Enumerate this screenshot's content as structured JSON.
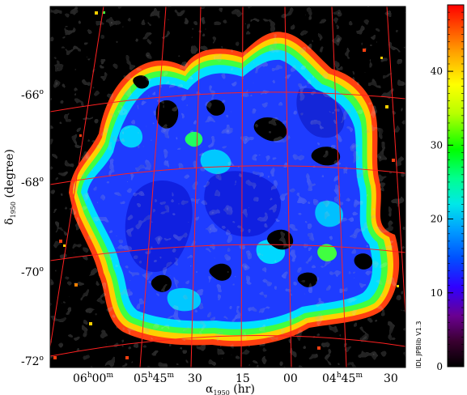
{
  "chart_data": {
    "type": "heatmap",
    "title": "",
    "xlabel": {
      "symbol": "α",
      "subscript": "1950",
      "unit": "(hr)"
    },
    "ylabel": {
      "symbol": "δ",
      "subscript": "1950",
      "unit": "(degree)"
    },
    "x_ticks": [
      {
        "main": "06",
        "sup1": "h",
        "mid": "00",
        "sup2": "m"
      },
      {
        "main": "05",
        "sup1": "h",
        "mid": "45",
        "sup2": "m"
      },
      {
        "main": "30",
        "sup1": "",
        "mid": "",
        "sup2": ""
      },
      {
        "main": "15",
        "sup1": "",
        "mid": "",
        "sup2": ""
      },
      {
        "main": "00",
        "sup1": "",
        "mid": "",
        "sup2": ""
      },
      {
        "main": "04",
        "sup1": "h",
        "mid": "45",
        "sup2": "m"
      },
      {
        "main": "30",
        "sup1": "",
        "mid": "",
        "sup2": ""
      }
    ],
    "x_tick_values_hr": [
      6.0,
      5.75,
      5.5,
      5.25,
      5.0,
      4.75,
      4.5
    ],
    "y_ticks": [
      {
        "main": "-66",
        "sup": "o"
      },
      {
        "main": "-68",
        "sup": "o"
      },
      {
        "main": "-70",
        "sup": "o"
      },
      {
        "main": "-72",
        "sup": "o"
      }
    ],
    "y_tick_values_deg": [
      -66,
      -68,
      -70,
      -72
    ],
    "colorbar": {
      "range": [
        0,
        49
      ],
      "tick_labels": [
        "0",
        "10",
        "20",
        "30",
        "40"
      ],
      "tick_values": [
        0,
        10,
        20,
        30,
        40
      ],
      "colormap": "rainbow (black → purple → blue → cyan → green → yellow → orange → red)"
    },
    "credit": "IDL JPBlib V1.3",
    "grid": true,
    "grid_color": "#ff2020",
    "background_color": "#000000",
    "dominant_value": "about 10 (blue) over the bulk of the emission region, rising to 25–45 (green to red) along the outer edges"
  }
}
